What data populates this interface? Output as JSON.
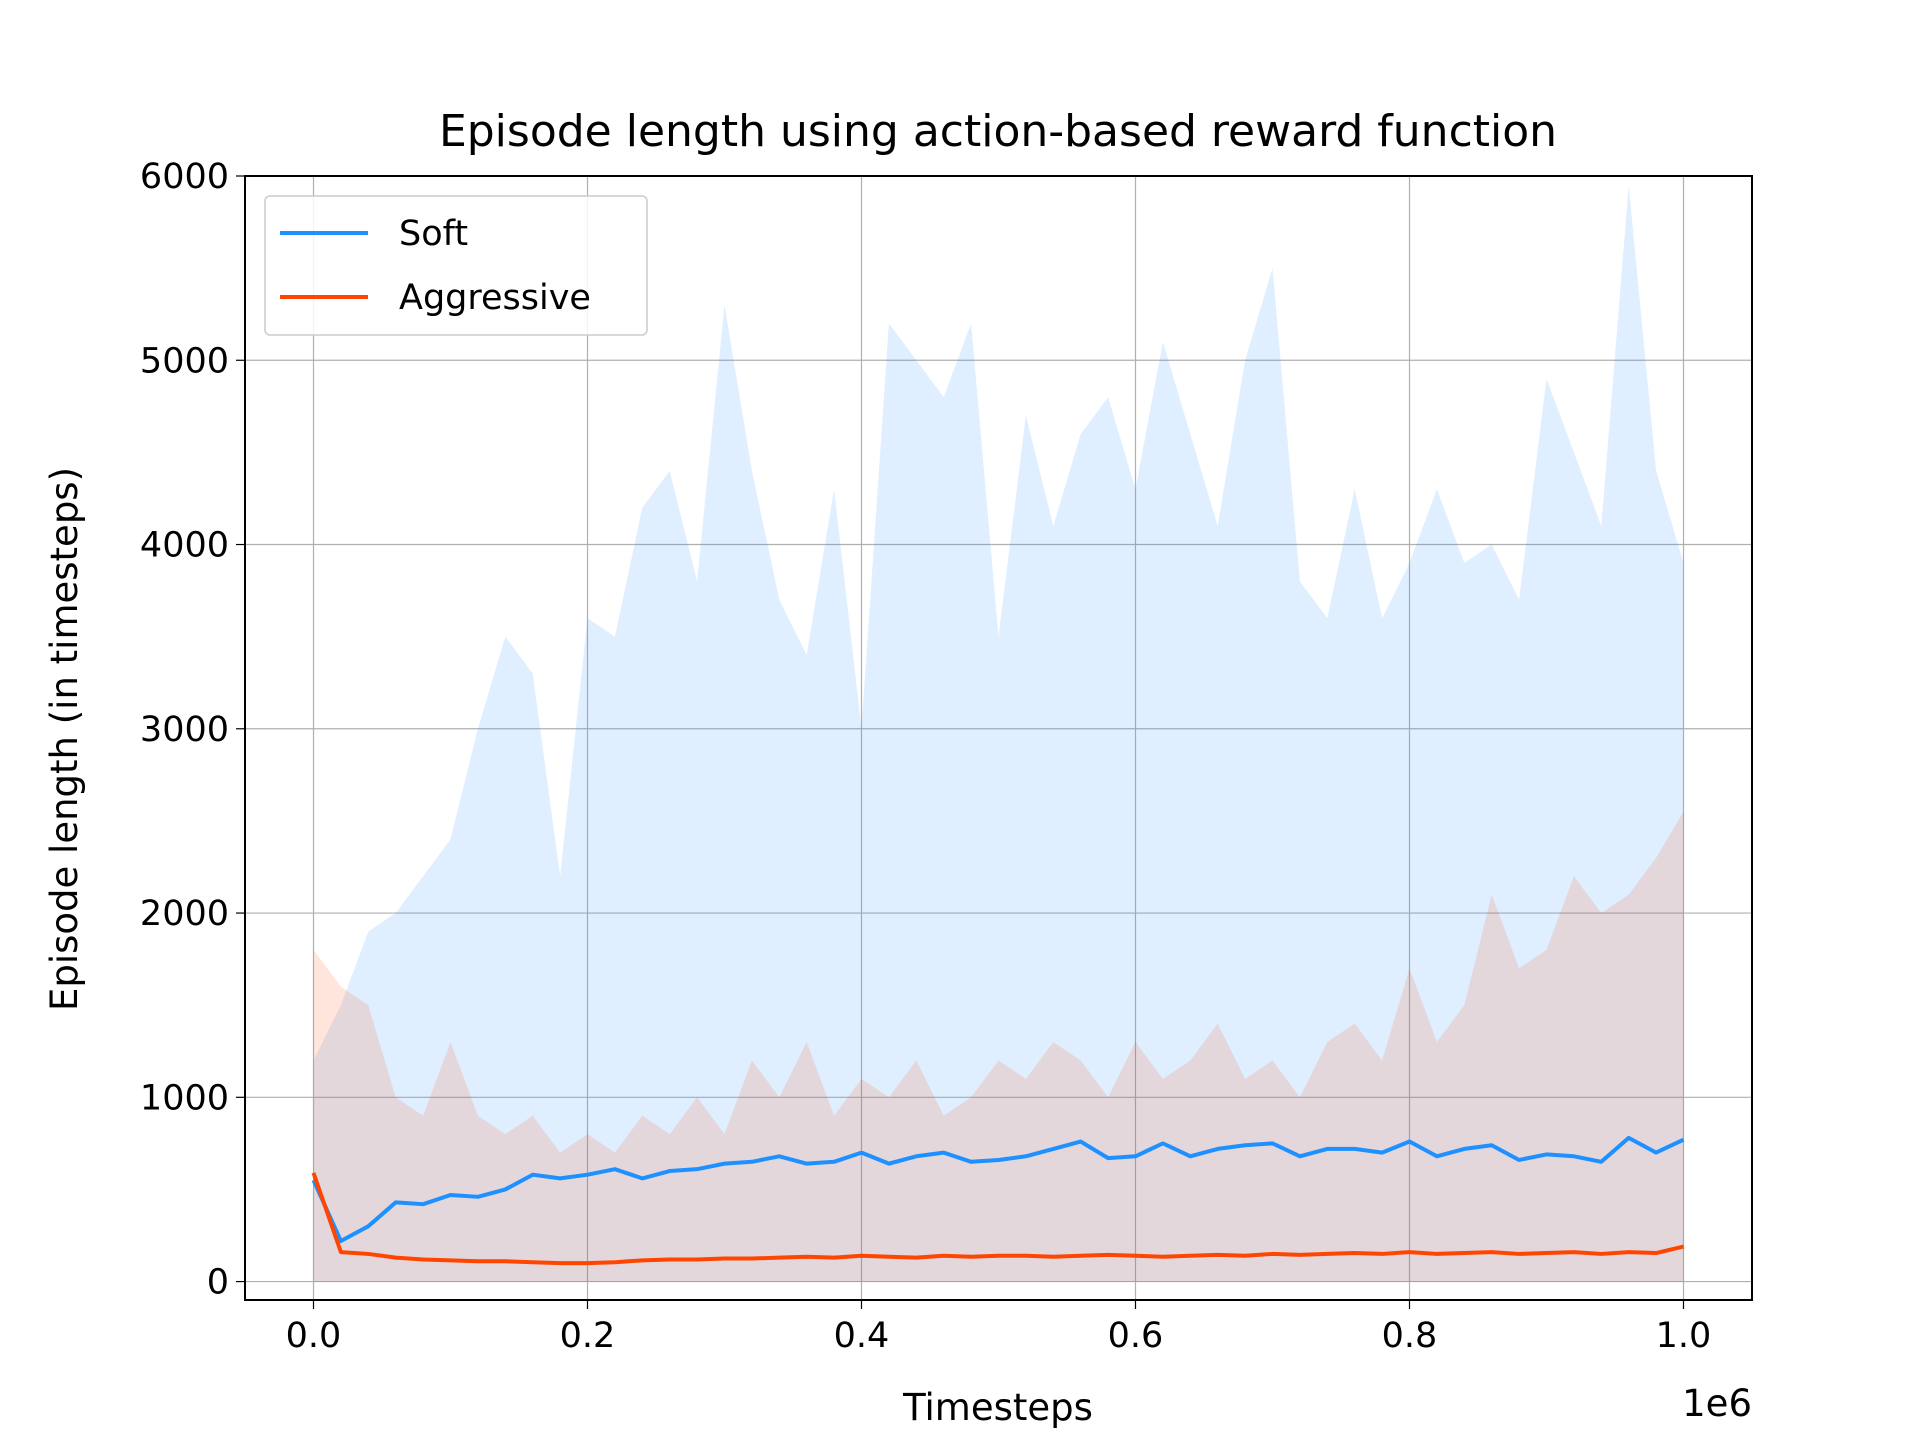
{
  "chart_data": {
    "type": "line",
    "title": "Episode length using action-based reward function",
    "x_label": "Timesteps",
    "x_offset_label": "1e6",
    "y_label": "Episode length (in timesteps)",
    "x": [
      0,
      0.02,
      0.04,
      0.06,
      0.08,
      0.1,
      0.12,
      0.14,
      0.16,
      0.18,
      0.2,
      0.22,
      0.24,
      0.26,
      0.28,
      0.3,
      0.32,
      0.34,
      0.36,
      0.38,
      0.4,
      0.42,
      0.44,
      0.46,
      0.48,
      0.5,
      0.52,
      0.54,
      0.56,
      0.58,
      0.6,
      0.62,
      0.64,
      0.66,
      0.68,
      0.7,
      0.72,
      0.74,
      0.76,
      0.78,
      0.8,
      0.82,
      0.84,
      0.86,
      0.88,
      0.9,
      0.92,
      0.94,
      0.96,
      0.98,
      1
    ],
    "series": [
      {
        "name": "Soft",
        "color": "#1e90ff",
        "values": [
          550,
          220,
          300,
          430,
          420,
          470,
          460,
          500,
          580,
          560,
          580,
          610,
          560,
          600,
          610,
          640,
          650,
          680,
          640,
          650,
          700,
          640,
          680,
          700,
          650,
          660,
          680,
          720,
          760,
          670,
          680,
          750,
          680,
          720,
          740,
          750,
          680,
          720,
          720,
          700,
          760,
          680,
          720,
          740,
          660,
          690,
          680,
          650,
          780,
          700,
          770
        ],
        "raw_max": [
          1200,
          1500,
          1900,
          2000,
          2200,
          2400,
          3000,
          3500,
          3300,
          2200,
          3600,
          3500,
          4200,
          4400,
          3800,
          5300,
          4400,
          3700,
          3400,
          4300,
          3000,
          5200,
          5000,
          4800,
          5200,
          3500,
          4700,
          4100,
          4600,
          4800,
          4300,
          5100,
          4600,
          4100,
          5000,
          5500,
          3800,
          3600,
          4300,
          3600,
          3900,
          4300,
          3900,
          4000,
          3700,
          4900,
          4500,
          4100,
          5950,
          4400,
          3900
        ]
      },
      {
        "name": "Aggressive",
        "color": "#ff4500",
        "values": [
          590,
          160,
          150,
          130,
          120,
          115,
          110,
          110,
          105,
          100,
          100,
          105,
          115,
          120,
          120,
          125,
          125,
          130,
          135,
          130,
          140,
          135,
          130,
          140,
          135,
          140,
          140,
          135,
          140,
          145,
          140,
          135,
          140,
          145,
          140,
          150,
          145,
          150,
          155,
          150,
          160,
          150,
          155,
          160,
          150,
          155,
          160,
          150,
          160,
          155,
          190
        ],
        "raw_max": [
          1800,
          1600,
          1500,
          1000,
          900,
          1300,
          900,
          800,
          900,
          700,
          800,
          700,
          900,
          800,
          1000,
          800,
          1200,
          1000,
          1300,
          900,
          1100,
          1000,
          1200,
          900,
          1000,
          1200,
          1100,
          1300,
          1200,
          1000,
          1300,
          1100,
          1200,
          1400,
          1100,
          1200,
          1000,
          1300,
          1400,
          1200,
          1700,
          1300,
          1500,
          2100,
          1700,
          1800,
          2200,
          2000,
          2100,
          2300,
          2550
        ]
      }
    ],
    "xlim": [
      -0.05,
      1.05
    ],
    "xticks": [
      {
        "value": 0,
        "label": "0.0"
      },
      0.2,
      0.4,
      0.6,
      0.8,
      {
        "value": 1,
        "label": "1.0"
      }
    ],
    "ylim": [
      -100,
      6000
    ],
    "yticks": [
      0,
      1000,
      2000,
      3000,
      4000,
      5000,
      6000
    ],
    "grid": true,
    "legend": "upper left"
  }
}
